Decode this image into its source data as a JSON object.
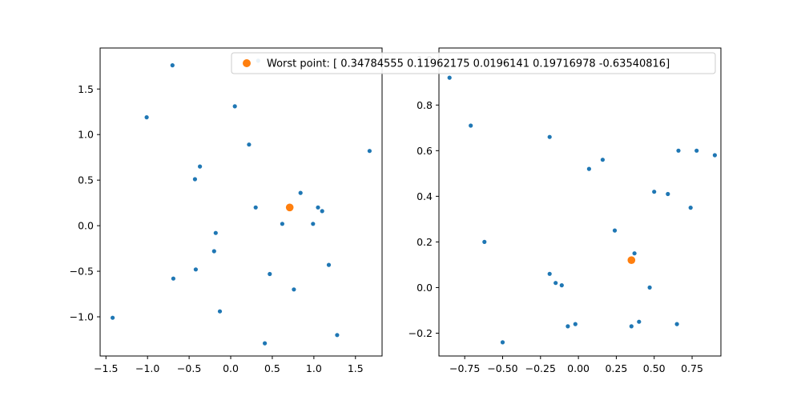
{
  "colors": {
    "points": "#1f77b4",
    "worst": "#ff7f0e",
    "axes": "#000000",
    "legend_border": "#cccccc",
    "background": "#ffffff"
  },
  "chart_data": [
    {
      "type": "scatter",
      "grid": false,
      "xlim": [
        -1.57,
        1.82
      ],
      "ylim": [
        -1.43,
        1.95
      ],
      "xticks": [
        -1.5,
        -1.0,
        -0.5,
        0.0,
        0.5,
        1.0,
        1.5
      ],
      "xtick_labels": [
        "−1.5",
        "−1.0",
        "−0.5",
        "0.0",
        "0.5",
        "1.0",
        "1.5"
      ],
      "yticks": [
        -1.0,
        -0.5,
        0.0,
        0.5,
        1.0,
        1.5
      ],
      "ytick_labels": [
        "−1.0",
        "−0.5",
        "0.0",
        "0.5",
        "1.0",
        "1.5"
      ],
      "series": [
        {
          "points": [
            [
              -0.7,
              1.76
            ],
            [
              -1.01,
              1.19
            ],
            [
              0.05,
              1.31
            ],
            [
              0.33,
              1.81
            ],
            [
              0.22,
              0.89
            ],
            [
              1.67,
              0.82
            ],
            [
              -0.37,
              0.65
            ],
            [
              -0.43,
              0.51
            ],
            [
              0.84,
              0.36
            ],
            [
              0.3,
              0.2
            ],
            [
              1.05,
              0.2
            ],
            [
              1.1,
              0.16
            ],
            [
              0.62,
              0.02
            ],
            [
              0.99,
              0.02
            ],
            [
              -0.18,
              -0.08
            ],
            [
              -0.2,
              -0.28
            ],
            [
              1.18,
              -0.43
            ],
            [
              -0.42,
              -0.48
            ],
            [
              0.47,
              -0.53
            ],
            [
              -0.69,
              -0.58
            ],
            [
              0.76,
              -0.7
            ],
            [
              -0.13,
              -0.94
            ],
            [
              -1.42,
              -1.01
            ],
            [
              1.28,
              -1.2
            ],
            [
              0.41,
              -1.29
            ]
          ]
        },
        {
          "name": "Worst point: [ 0.34784555  0.11962175  0.0196141   0.19716978 -0.63540816]",
          "points": [
            [
              0.71,
              0.2
            ]
          ]
        }
      ]
    },
    {
      "type": "scatter",
      "grid": false,
      "xlim": [
        -0.92,
        0.94
      ],
      "ylim": [
        -0.3,
        1.05
      ],
      "xticks": [
        -0.75,
        -0.5,
        -0.25,
        0.0,
        0.25,
        0.5,
        0.75
      ],
      "xtick_labels": [
        "−0.75",
        "−0.50",
        "−0.25",
        "0.00",
        "0.25",
        "0.50",
        "0.75"
      ],
      "yticks": [
        -0.2,
        0.0,
        0.2,
        0.4,
        0.6,
        0.8,
        1.0
      ],
      "ytick_labels": [
        "−0.2",
        "0.0",
        "0.2",
        "0.4",
        "0.6",
        "0.8",
        "1.0"
      ],
      "series": [
        {
          "points": [
            [
              -0.85,
              0.92
            ],
            [
              -0.71,
              0.71
            ],
            [
              -0.19,
              0.66
            ],
            [
              0.16,
              0.56
            ],
            [
              0.07,
              0.52
            ],
            [
              0.66,
              0.6
            ],
            [
              0.78,
              0.6
            ],
            [
              0.9,
              0.58
            ],
            [
              0.5,
              0.42
            ],
            [
              0.59,
              0.41
            ],
            [
              0.74,
              0.35
            ],
            [
              0.24,
              0.25
            ],
            [
              -0.62,
              0.2
            ],
            [
              0.37,
              0.15
            ],
            [
              -0.19,
              0.06
            ],
            [
              -0.15,
              0.02
            ],
            [
              -0.11,
              0.01
            ],
            [
              0.47,
              0.0
            ],
            [
              -0.5,
              -0.24
            ],
            [
              -0.07,
              -0.17
            ],
            [
              -0.02,
              -0.16
            ],
            [
              0.35,
              -0.17
            ],
            [
              0.4,
              -0.15
            ],
            [
              0.65,
              -0.16
            ]
          ]
        },
        {
          "name": "Worst point: [ 0.34784555  0.11962175  0.0196141   0.19716978 -0.63540816]",
          "points": [
            [
              0.35,
              0.12
            ]
          ]
        }
      ]
    }
  ]
}
